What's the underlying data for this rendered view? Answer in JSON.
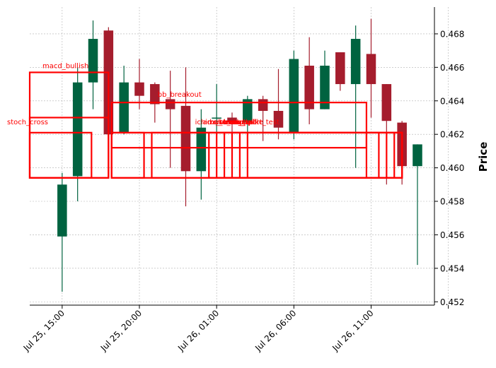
{
  "chart_data": {
    "type": "candlestick",
    "ylabel": "Price",
    "ylim": [
      0.4518,
      0.4696
    ],
    "xlim": [
      -2.1,
      24.1
    ],
    "grid": true,
    "up_color": "#006340",
    "down_color": "#a51d2d",
    "annotation_color": "#ff0000",
    "yticks": [
      0.452,
      0.454,
      0.456,
      0.458,
      0.46,
      0.462,
      0.464,
      0.466,
      0.468
    ],
    "ytick_labels": [
      "0.452",
      "0.454",
      "0.456",
      "0.458",
      "0.460",
      "0.462",
      "0.464",
      "0.466",
      "0.468"
    ],
    "xticks": [
      0,
      5,
      10,
      15,
      20,
      25
    ],
    "xtick_labels": [
      "Jul 25, 15:00",
      "Jul 25, 20:00",
      "Jul 26, 01:00",
      "Jul 26, 06:00",
      "Jul 26, 11:00",
      ""
    ],
    "candles": [
      {
        "open": 0.4559,
        "high": 0.4597,
        "low": 0.4526,
        "close": 0.459
      },
      {
        "open": 0.4595,
        "high": 0.466,
        "low": 0.458,
        "close": 0.4651
      },
      {
        "open": 0.4651,
        "high": 0.4688,
        "low": 0.4635,
        "close": 0.4677
      },
      {
        "open": 0.4682,
        "high": 0.4684,
        "low": 0.4611,
        "close": 0.462
      },
      {
        "open": 0.4621,
        "high": 0.4661,
        "low": 0.462,
        "close": 0.4651
      },
      {
        "open": 0.4651,
        "high": 0.4665,
        "low": 0.4635,
        "close": 0.4643
      },
      {
        "open": 0.465,
        "high": 0.4651,
        "low": 0.4627,
        "close": 0.4638
      },
      {
        "open": 0.4641,
        "high": 0.4658,
        "low": 0.46,
        "close": 0.4635
      },
      {
        "open": 0.4637,
        "high": 0.466,
        "low": 0.4577,
        "close": 0.4598
      },
      {
        "open": 0.4598,
        "high": 0.4635,
        "low": 0.4581,
        "close": 0.4624
      },
      {
        "open": 0.463,
        "high": 0.465,
        "low": 0.4621,
        "close": 0.463
      },
      {
        "open": 0.463,
        "high": 0.4633,
        "low": 0.4609,
        "close": 0.4627
      },
      {
        "open": 0.4627,
        "high": 0.4643,
        "low": 0.4615,
        "close": 0.4641
      },
      {
        "open": 0.4641,
        "high": 0.4643,
        "low": 0.4616,
        "close": 0.4634
      },
      {
        "open": 0.4634,
        "high": 0.4659,
        "low": 0.4617,
        "close": 0.4624
      },
      {
        "open": 0.4621,
        "high": 0.467,
        "low": 0.4617,
        "close": 0.4665
      },
      {
        "open": 0.4661,
        "high": 0.4678,
        "low": 0.4626,
        "close": 0.4635
      },
      {
        "open": 0.4635,
        "high": 0.467,
        "low": 0.4635,
        "close": 0.4661
      },
      {
        "open": 0.4669,
        "high": 0.4669,
        "low": 0.4646,
        "close": 0.465
      },
      {
        "open": 0.465,
        "high": 0.4685,
        "low": 0.46,
        "close": 0.4677
      },
      {
        "open": 0.4668,
        "high": 0.4689,
        "low": 0.463,
        "close": 0.465
      },
      {
        "open": 0.465,
        "high": 0.465,
        "low": 0.459,
        "close": 0.4628
      },
      {
        "open": 0.4627,
        "high": 0.4628,
        "low": 0.459,
        "close": 0.4601
      },
      {
        "open": 0.4601,
        "high": 0.4614,
        "low": 0.4542,
        "close": 0.4614
      }
    ],
    "annotations": [
      {
        "name": "macd_bullish",
        "label": "macd_bullish",
        "x0": -2.1,
        "x1": 3.0,
        "y0": 0.4594,
        "y1": 0.4657
      },
      {
        "name": "stoch_cross",
        "label": "stoch_cross",
        "x0": -2.1,
        "x1": 3.0,
        "y0": 0.4594,
        "y1": 0.463
      },
      {
        "name": "stoch-cross-2",
        "label": "",
        "x0": -2.1,
        "x1": 1.9,
        "y0": 0.4594,
        "y1": 0.4621
      },
      {
        "name": "bb_breakout",
        "label": "bb_breakout",
        "x0": 3.2,
        "x1": 19.7,
        "y0": 0.4594,
        "y1": 0.4639
      },
      {
        "name": "ichimoku-a",
        "label": "ichimoku_cross",
        "x0": 3.2,
        "x1": 5.3,
        "y0": 0.4594,
        "y1": 0.4621
      },
      {
        "name": "ichimoku-b",
        "label": "",
        "x0": 5.8,
        "x1": 22.0,
        "y0": 0.4594,
        "y1": 0.4621
      },
      {
        "name": "adx-strong",
        "label": "adx_strong",
        "x0": 3.2,
        "x1": 19.7,
        "y0": 0.4612,
        "y1": 0.4621
      },
      {
        "name": "rsi-cross",
        "label": "rsi_cross",
        "x0": 10.0,
        "x1": 21.0,
        "y0": 0.4594,
        "y1": 0.4621
      },
      {
        "name": "volume-spike",
        "label": "volume_spike",
        "x0": 9.5,
        "x1": 20.5,
        "y0": 0.4594,
        "y1": 0.4621
      },
      {
        "name": "trend-bull",
        "label": "trend_bull",
        "x0": 10.5,
        "x1": 21.5,
        "y0": 0.4594,
        "y1": 0.4621
      },
      {
        "name": "ema-bull",
        "label": "ema_bull",
        "x0": 11.0,
        "x1": 22.0,
        "y0": 0.4594,
        "y1": 0.4621
      },
      {
        "name": "obv-bull",
        "label": "obv_bull",
        "x0": 11.5,
        "x1": 22.0,
        "y0": 0.4594,
        "y1": 0.4621
      },
      {
        "name": "support",
        "label": "support_test",
        "x0": 12.0,
        "x1": 22.0,
        "y0": 0.4594,
        "y1": 0.4621
      }
    ]
  }
}
